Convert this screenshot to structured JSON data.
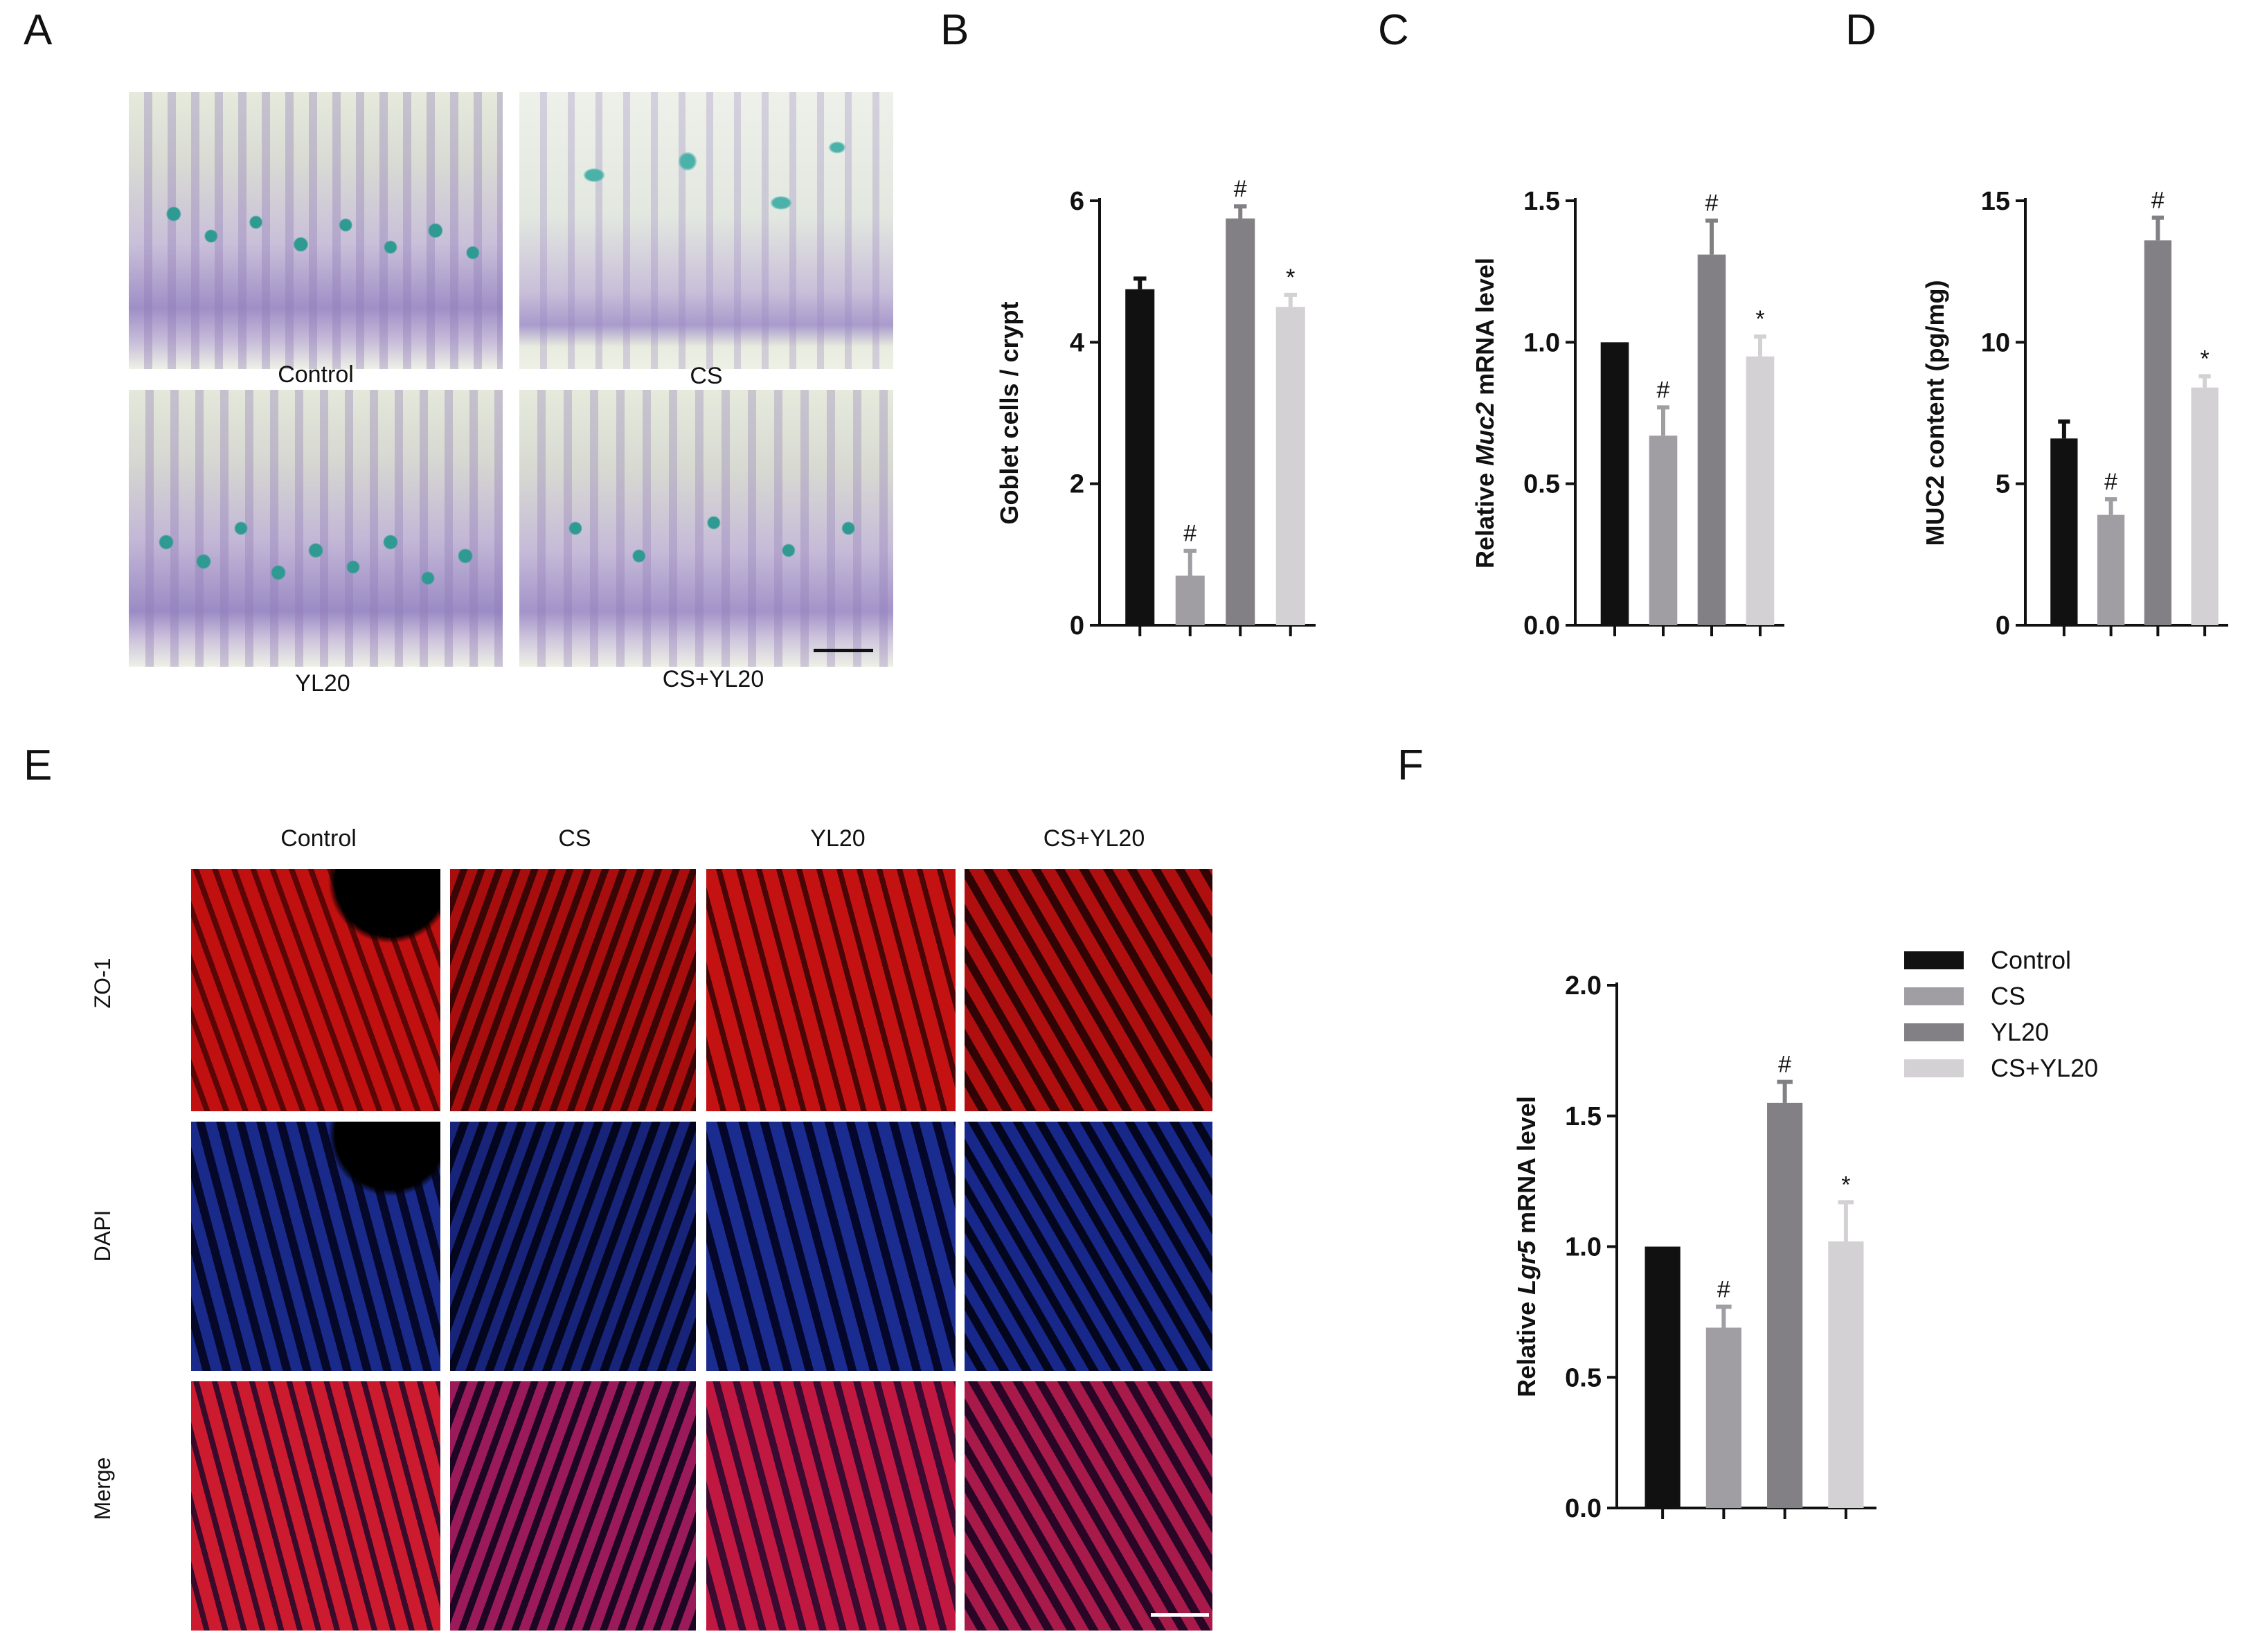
{
  "panels": {
    "A": "A",
    "B": "B",
    "C": "C",
    "D": "D",
    "E": "E",
    "F": "F"
  },
  "panel_a": {
    "captions": [
      "Control",
      "CS",
      "YL20",
      "CS+YL20"
    ]
  },
  "panel_e": {
    "columns": [
      "Control",
      "CS",
      "YL20",
      "CS+YL20"
    ],
    "rows": [
      "ZO-1",
      "DAPI",
      "Merge"
    ]
  },
  "groups": [
    "Control",
    "CS",
    "YL20",
    "CS+YL20"
  ],
  "colors": {
    "Control": "#111111",
    "CS": "#a09ea3",
    "YL20": "#828084",
    "CS+YL20": "#d3d1d4"
  },
  "legend": {
    "items": [
      "Control",
      "CS",
      "YL20",
      "CS+YL20"
    ]
  },
  "chart_data": [
    {
      "panel": "B",
      "type": "bar",
      "categories": [
        "Control",
        "CS",
        "YL20",
        "CS+YL20"
      ],
      "values": [
        4.75,
        0.7,
        5.75,
        4.5
      ],
      "errors": [
        0.15,
        0.35,
        0.17,
        0.17
      ],
      "marks": [
        "",
        "#",
        "#",
        "*"
      ],
      "ylabel": "Goblet cells / crypt",
      "ylim": [
        0,
        6
      ],
      "yticks": [
        "0",
        "2",
        "4",
        "6"
      ],
      "tick_values": [
        0,
        2,
        4,
        6
      ]
    },
    {
      "panel": "C",
      "type": "bar",
      "categories": [
        "Control",
        "CS",
        "YL20",
        "CS+YL20"
      ],
      "values": [
        1.0,
        0.67,
        1.31,
        0.95
      ],
      "errors": [
        0.0,
        0.1,
        0.12,
        0.07
      ],
      "marks": [
        "",
        "#",
        "#",
        "*"
      ],
      "ylabel_prefix": "Relative ",
      "ylabel_italic": "Muc2",
      "ylabel_suffix": " mRNA level",
      "ylim": [
        0,
        1.5
      ],
      "yticks": [
        "0.0",
        "0.5",
        "1.0",
        "1.5"
      ],
      "tick_values": [
        0,
        0.5,
        1.0,
        1.5
      ]
    },
    {
      "panel": "D",
      "type": "bar",
      "categories": [
        "Control",
        "CS",
        "YL20",
        "CS+YL20"
      ],
      "values": [
        6.6,
        3.9,
        13.6,
        8.4
      ],
      "errors": [
        0.6,
        0.55,
        0.8,
        0.4
      ],
      "marks": [
        "",
        "#",
        "#",
        "*"
      ],
      "ylabel": "MUC2 content (pg/mg)",
      "ylim": [
        0,
        15
      ],
      "yticks": [
        "0",
        "5",
        "10",
        "15"
      ],
      "tick_values": [
        0,
        5,
        10,
        15
      ]
    },
    {
      "panel": "F",
      "type": "bar",
      "categories": [
        "Control",
        "CS",
        "YL20",
        "CS+YL20"
      ],
      "values": [
        1.0,
        0.69,
        1.55,
        1.02
      ],
      "errors": [
        0.0,
        0.08,
        0.08,
        0.15
      ],
      "marks": [
        "",
        "#",
        "#",
        "*"
      ],
      "ylabel_prefix": "Relative ",
      "ylabel_italic": "Lgr5",
      "ylabel_suffix": " mRNA level",
      "ylim": [
        0,
        2.0
      ],
      "yticks": [
        "0.0",
        "0.5",
        "1.0",
        "1.5",
        "2.0"
      ],
      "tick_values": [
        0,
        0.5,
        1.0,
        1.5,
        2.0
      ]
    }
  ]
}
